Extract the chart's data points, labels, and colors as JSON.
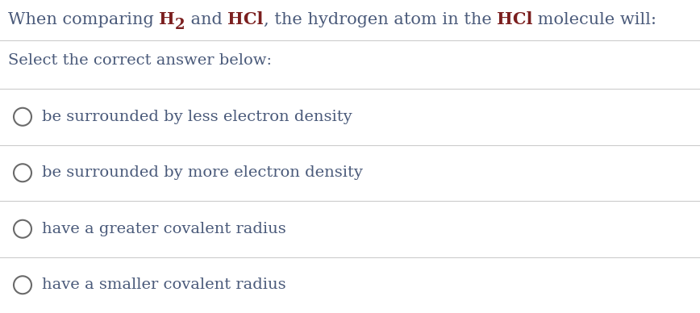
{
  "bg_color": "#ffffff",
  "text_color": "#4a5a7a",
  "bold_color": "#7b1f1f",
  "line_color": "#cccccc",
  "circle_edge_color": "#6a6a6a",
  "subtitle": "Select the correct answer below:",
  "options": [
    "be surrounded by less electron density",
    "be surrounded by more electron density",
    "have a greater covalent radius",
    "have a smaller covalent radius"
  ],
  "title_fontsize": 15,
  "option_fontsize": 14,
  "subtitle_fontsize": 14,
  "fig_width": 8.68,
  "fig_height": 3.88,
  "dpi": 100
}
